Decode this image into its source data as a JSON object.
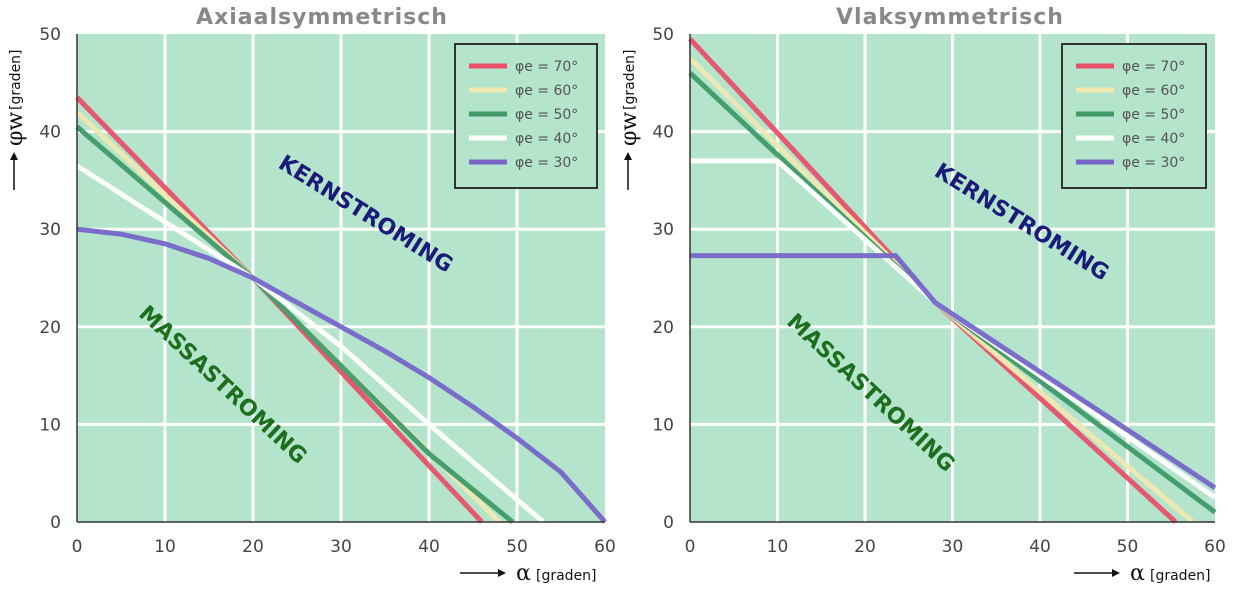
{
  "colors": {
    "plot_bg": "#b4e4cc",
    "grid": "#ffffff",
    "frame": "#333333",
    "legend_bg": "#b4e4cc",
    "kern": "#1a1a7a",
    "massa": "#1d6e1d"
  },
  "chart_data": [
    {
      "type": "line",
      "title": "Axiaalsymmetrisch",
      "xlabel": {
        "symbol": "α",
        "unit": "[graden]"
      },
      "ylabel": {
        "symbol": "φw",
        "unit": "[graden]"
      },
      "xlim": [
        0,
        60
      ],
      "ylim": [
        0,
        50
      ],
      "xticks": [
        "0",
        "10",
        "20",
        "30",
        "40",
        "50",
        "60"
      ],
      "yticks": [
        "0",
        "10",
        "20",
        "30",
        "40",
        "50"
      ],
      "grid": true,
      "legend_position": "top-right",
      "region_labels": [
        "KERNSTROMING",
        "MASSASTROMING"
      ],
      "series": [
        {
          "name": "φe = 70°",
          "color": "#e8506a",
          "x": [
            0,
            20,
            46
          ],
          "y": [
            43.5,
            25,
            0
          ]
        },
        {
          "name": "φe = 60°",
          "color": "#f0e8b0",
          "x": [
            0,
            20,
            48
          ],
          "y": [
            42,
            25,
            0
          ]
        },
        {
          "name": "φe = 50°",
          "color": "#3f9a68",
          "x": [
            0,
            20,
            30,
            40,
            49.5
          ],
          "y": [
            40.5,
            25,
            16,
            7,
            0
          ]
        },
        {
          "name": "φe = 40°",
          "color": "#ffffff",
          "x": [
            0,
            20,
            30,
            40,
            53
          ],
          "y": [
            36.5,
            25,
            18,
            10,
            0
          ]
        },
        {
          "name": "φe = 30°",
          "color": "#7766c8",
          "x": [
            0,
            5,
            10,
            15,
            20,
            25,
            30,
            35,
            40,
            45,
            50,
            55,
            60
          ],
          "y": [
            30,
            29.5,
            28.5,
            27,
            25,
            22.5,
            20,
            17.5,
            14.8,
            11.8,
            8.6,
            5.1,
            0
          ]
        }
      ]
    },
    {
      "type": "line",
      "title": "Vlaksymmetrisch",
      "xlabel": {
        "symbol": "α",
        "unit": "[graden]"
      },
      "ylabel": {
        "symbol": "φw",
        "unit": "[graden]"
      },
      "xlim": [
        0,
        60
      ],
      "ylim": [
        0,
        50
      ],
      "xticks": [
        "0",
        "10",
        "20",
        "30",
        "40",
        "50",
        "60"
      ],
      "yticks": [
        "0",
        "10",
        "20",
        "30",
        "40",
        "50"
      ],
      "grid": true,
      "legend_position": "top-right",
      "region_labels": [
        "KERNSTROMING",
        "MASSASTROMING"
      ],
      "series": [
        {
          "name": "φe = 70°",
          "color": "#e8506a",
          "x": [
            0,
            28,
            55.5
          ],
          "y": [
            49.5,
            22.5,
            0
          ]
        },
        {
          "name": "φe = 60°",
          "color": "#f0e8b0",
          "x": [
            0,
            28,
            57.5
          ],
          "y": [
            47.5,
            22.5,
            0
          ]
        },
        {
          "name": "φe = 50°",
          "color": "#3f9a68",
          "x": [
            0,
            28,
            60
          ],
          "y": [
            46,
            22.5,
            1
          ]
        },
        {
          "name": "φe = 40°",
          "color": "#ffffff",
          "x": [
            0,
            10,
            28,
            60
          ],
          "y": [
            37,
            37,
            22.5,
            2.5
          ]
        },
        {
          "name": "φe = 30°",
          "color": "#7766c8",
          "x": [
            0,
            23.5,
            28,
            60
          ],
          "y": [
            27.3,
            27.3,
            22.5,
            3.5
          ]
        }
      ]
    }
  ]
}
